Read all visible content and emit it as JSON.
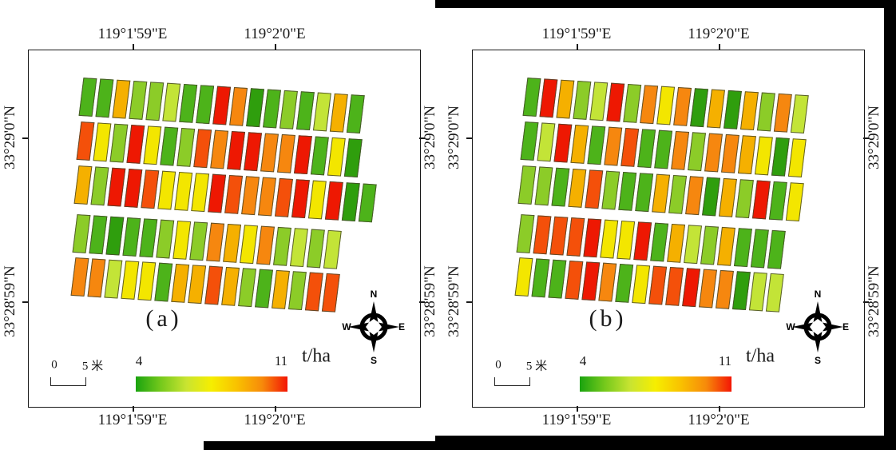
{
  "figure": {
    "axis": {
      "lon": [
        "119°1'59\"E",
        "119°2'0\"E"
      ],
      "lat": [
        "33°29'0\"N",
        "33°28'59\"N"
      ]
    },
    "scalebar": {
      "zero": "0",
      "distance": "5 米"
    },
    "legend": {
      "min": "4",
      "max": "11",
      "unit": "t/ha",
      "gradient": [
        "#1aa30f",
        "#76c91c",
        "#c9e431",
        "#f6ee00",
        "#f9c100",
        "#f78a0a",
        "#f31605"
      ]
    },
    "compass": {
      "n": "N",
      "e": "E",
      "s": "S",
      "w": "W"
    },
    "palette": {
      "G3": "#2f9e0d",
      "G2": "#4db31a",
      "G1": "#8ccc28",
      "G0": "#c3e437",
      "Y": "#f3e600",
      "A": "#f5b000",
      "O": "#f6870f",
      "V": "#f4500a",
      "R": "#ee1802"
    },
    "panels": [
      {
        "label": "(a)",
        "rows": [
          [
            "G2",
            "G2",
            "A",
            "G1",
            "G1",
            "G0",
            "G2",
            "G2",
            "R",
            "O",
            "G3",
            "G2",
            "G1",
            "G2",
            "G0",
            "A",
            "G2"
          ],
          [
            "V",
            "Y",
            "G1",
            "R",
            "Y",
            "G2",
            "G1",
            "V",
            "O",
            "R",
            "R",
            "O",
            "O",
            "R",
            "G2",
            "Y",
            "G3"
          ],
          [
            "A",
            "G1",
            "R",
            "R",
            "V",
            "Y",
            "Y",
            "Y",
            "R",
            "V",
            "O",
            "O",
            "V",
            "R",
            "Y",
            "R",
            "G3",
            "G2"
          ],
          [
            "G1",
            "G2",
            "G3",
            "G2",
            "G2",
            "G1",
            "Y",
            "G1",
            "O",
            "A",
            "Y",
            "O",
            "G1",
            "G0",
            "G1",
            "G0"
          ],
          [
            "O",
            "O",
            "G0",
            "Y",
            "Y",
            "G2",
            "A",
            "A",
            "V",
            "A",
            "G1",
            "G2",
            "A",
            "G1",
            "V",
            "V"
          ]
        ]
      },
      {
        "label": "(b)",
        "rows": [
          [
            "G2",
            "R",
            "A",
            "G1",
            "G0",
            "R",
            "G1",
            "O",
            "Y",
            "O",
            "G3",
            "A",
            "G3",
            "A",
            "G1",
            "O",
            "G0"
          ],
          [
            "G2",
            "G0",
            "R",
            "A",
            "G2",
            "O",
            "V",
            "G2",
            "G2",
            "O",
            "G1",
            "O",
            "O",
            "A",
            "Y",
            "G3",
            "Y"
          ],
          [
            "G1",
            "G1",
            "G2",
            "A",
            "V",
            "G1",
            "G2",
            "G2",
            "A",
            "G1",
            "O",
            "G3",
            "A",
            "G1",
            "R",
            "G2",
            "Y"
          ],
          [
            "G1",
            "V",
            "V",
            "V",
            "R",
            "Y",
            "Y",
            "R",
            "G2",
            "A",
            "G0",
            "G1",
            "A",
            "G2",
            "G2",
            "G2"
          ],
          [
            "Y",
            "G2",
            "G2",
            "V",
            "R",
            "O",
            "G2",
            "Y",
            "V",
            "V",
            "R",
            "O",
            "O",
            "G3",
            "G0",
            "G0"
          ]
        ]
      }
    ]
  }
}
